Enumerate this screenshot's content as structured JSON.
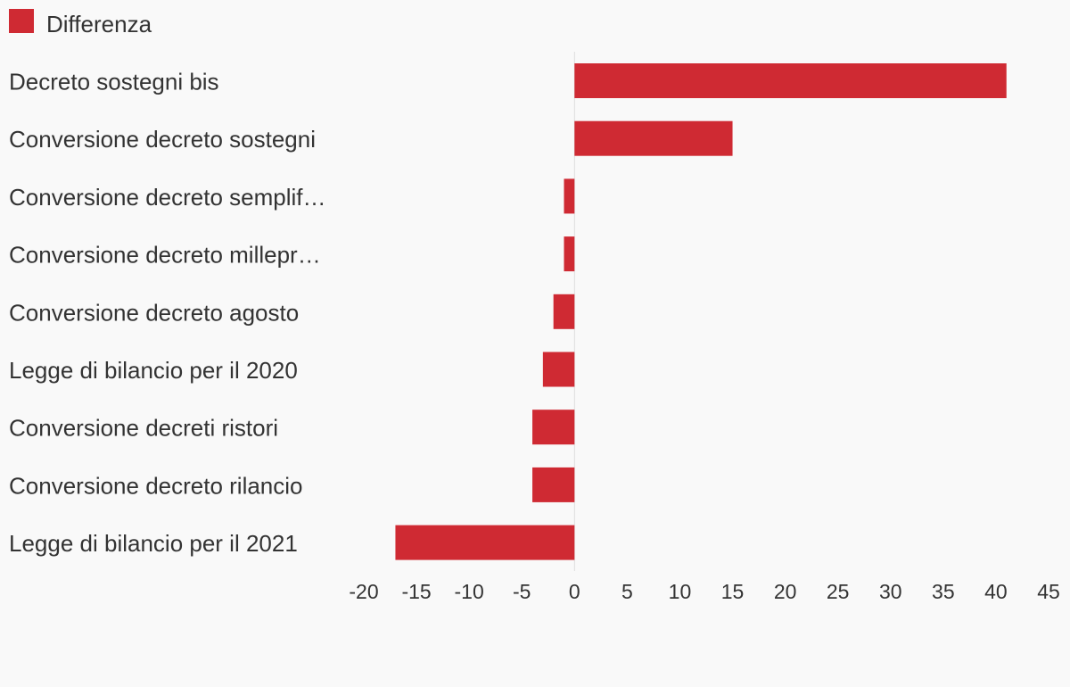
{
  "chart_data": {
    "type": "bar",
    "orientation": "horizontal",
    "legend": {
      "position": "top-left"
    },
    "series": [
      {
        "name": "Differenza",
        "color": "#cf2a33",
        "values": [
          41,
          15,
          -1,
          -1,
          -2,
          -3,
          -4,
          -4,
          -17
        ]
      }
    ],
    "categories": [
      "Decreto sostegni bis",
      "Conversione decreto sostegni",
      "Conversione decreto semplif…",
      "Conversione decreto millepr…",
      "Conversione decreto agosto",
      "Legge di bilancio per il 2020",
      "Conversione decreti ristori",
      "Conversione decreto rilancio",
      "Legge di bilancio per il 2021"
    ],
    "xlim": [
      -20,
      45
    ],
    "xticks": [
      "-20",
      "-15",
      "-10",
      "-5",
      "0",
      "5",
      "10",
      "15",
      "20",
      "25",
      "30",
      "35",
      "40",
      "45"
    ],
    "grid": false
  }
}
